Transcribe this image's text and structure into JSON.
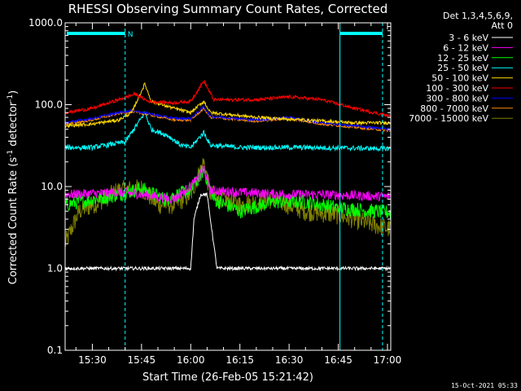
{
  "chart_data": {
    "type": "line",
    "title": "RHESSI Observing Summary Count Rates, Corrected",
    "xlabel": "Start Time (26-Feb-05 15:21:42)",
    "ylabel_main": "Corrected Count Rate (s",
    "ylabel_sup1": "-1",
    "ylabel_mid": " detector",
    "ylabel_sup2": "-1",
    "ylabel_end": ")",
    "yscale": "log",
    "ylim": [
      0.1,
      1000
    ],
    "xlim_minutes": [
      21.7,
      121
    ],
    "x_ticks": [
      {
        "label": "15:30",
        "min": 30
      },
      {
        "label": "15:45",
        "min": 45
      },
      {
        "label": "16:00",
        "min": 60
      },
      {
        "label": "16:15",
        "min": 75
      },
      {
        "label": "16:30",
        "min": 90
      },
      {
        "label": "16:45",
        "min": 105
      },
      {
        "label": "17:00",
        "min": 120
      }
    ],
    "y_ticks": [
      {
        "label": "0.1",
        "v": 0.1
      },
      {
        "label": "1.0",
        "v": 1
      },
      {
        "label": "10.0",
        "v": 10
      },
      {
        "label": "100.0",
        "v": 100
      },
      {
        "label": "1000.0",
        "v": 1000
      }
    ],
    "legend_header": [
      "Det 1,3,4,5,6,9,",
      "Att 0"
    ],
    "flag_label": "N",
    "timestamp": "15-Oct-2021 05:33",
    "series": [
      {
        "name": "3 - 6 keV",
        "color": "#000000",
        "points": [
          [
            21.7,
            1
          ],
          [
            60,
            1
          ],
          [
            61,
            4
          ],
          [
            63,
            8
          ],
          [
            65,
            8
          ],
          [
            67,
            2
          ],
          [
            68,
            1
          ],
          [
            121,
            1
          ]
        ]
      },
      {
        "name": "6 - 12 keV",
        "color": "#ff00ff",
        "points": [
          [
            21.7,
            8
          ],
          [
            40,
            8.5
          ],
          [
            45,
            8
          ],
          [
            55,
            7
          ],
          [
            62,
            12
          ],
          [
            64,
            17
          ],
          [
            66,
            9
          ],
          [
            75,
            8.5
          ],
          [
            90,
            8
          ],
          [
            100,
            8
          ],
          [
            121,
            7.5
          ]
        ]
      },
      {
        "name": "12 - 25 keV",
        "color": "#00ff00",
        "points": [
          [
            21.7,
            6
          ],
          [
            38,
            8
          ],
          [
            45,
            9.5
          ],
          [
            52,
            7
          ],
          [
            60,
            9
          ],
          [
            64,
            16
          ],
          [
            67,
            7
          ],
          [
            75,
            5
          ],
          [
            85,
            6.5
          ],
          [
            95,
            6.5
          ],
          [
            105,
            5.5
          ],
          [
            121,
            4.8
          ]
        ]
      },
      {
        "name": "25 - 50 keV",
        "color": "#00ffff",
        "points": [
          [
            21.7,
            30
          ],
          [
            30,
            30
          ],
          [
            40,
            35
          ],
          [
            44,
            60
          ],
          [
            46,
            80
          ],
          [
            48,
            50
          ],
          [
            53,
            42
          ],
          [
            57,
            32
          ],
          [
            60,
            30
          ],
          [
            64,
            46
          ],
          [
            66,
            32
          ],
          [
            75,
            30
          ],
          [
            95,
            30
          ],
          [
            121,
            29
          ]
        ]
      },
      {
        "name": "50 - 100 keV",
        "color": "#ffd700",
        "points": [
          [
            21.7,
            55
          ],
          [
            30,
            58
          ],
          [
            38,
            65
          ],
          [
            42,
            80
          ],
          [
            46,
            180
          ],
          [
            48,
            110
          ],
          [
            55,
            90
          ],
          [
            60,
            80
          ],
          [
            64,
            110
          ],
          [
            66,
            80
          ],
          [
            80,
            70
          ],
          [
            95,
            65
          ],
          [
            110,
            60
          ],
          [
            121,
            60
          ]
        ]
      },
      {
        "name": "100 - 300 keV",
        "color": "#ff0000",
        "points": [
          [
            21.7,
            80
          ],
          [
            30,
            90
          ],
          [
            38,
            115
          ],
          [
            43,
            135
          ],
          [
            47,
            110
          ],
          [
            55,
            105
          ],
          [
            60,
            110
          ],
          [
            64,
            195
          ],
          [
            67,
            115
          ],
          [
            80,
            115
          ],
          [
            90,
            125
          ],
          [
            100,
            115
          ],
          [
            110,
            90
          ],
          [
            121,
            72
          ]
        ]
      },
      {
        "name": "300 - 800 keV",
        "color": "#0000ff",
        "points": [
          [
            21.7,
            60
          ],
          [
            30,
            68
          ],
          [
            38,
            80
          ],
          [
            42,
            85
          ],
          [
            47,
            78
          ],
          [
            55,
            68
          ],
          [
            60,
            68
          ],
          [
            64,
            95
          ],
          [
            66,
            72
          ],
          [
            80,
            65
          ],
          [
            90,
            70
          ],
          [
            100,
            60
          ],
          [
            110,
            55
          ],
          [
            121,
            50
          ]
        ]
      },
      {
        "name": "800 - 7000 keV",
        "color": "#ff8c00",
        "points": [
          [
            21.7,
            58
          ],
          [
            30,
            65
          ],
          [
            38,
            78
          ],
          [
            42,
            82
          ],
          [
            47,
            76
          ],
          [
            55,
            65
          ],
          [
            60,
            65
          ],
          [
            64,
            90
          ],
          [
            66,
            70
          ],
          [
            80,
            63
          ],
          [
            90,
            68
          ],
          [
            100,
            58
          ],
          [
            110,
            53
          ],
          [
            121,
            48
          ]
        ]
      },
      {
        "name": "7000 - 15000 keV",
        "color": "#808000",
        "points": [
          [
            21.7,
            2
          ],
          [
            26,
            5
          ],
          [
            32,
            6.5
          ],
          [
            38,
            9
          ],
          [
            45,
            9.5
          ],
          [
            50,
            6
          ],
          [
            55,
            6
          ],
          [
            60,
            8
          ],
          [
            64,
            20
          ],
          [
            66,
            8
          ],
          [
            75,
            6
          ],
          [
            85,
            7
          ],
          [
            95,
            5
          ],
          [
            105,
            4.5
          ],
          [
            121,
            3
          ]
        ]
      }
    ]
  }
}
